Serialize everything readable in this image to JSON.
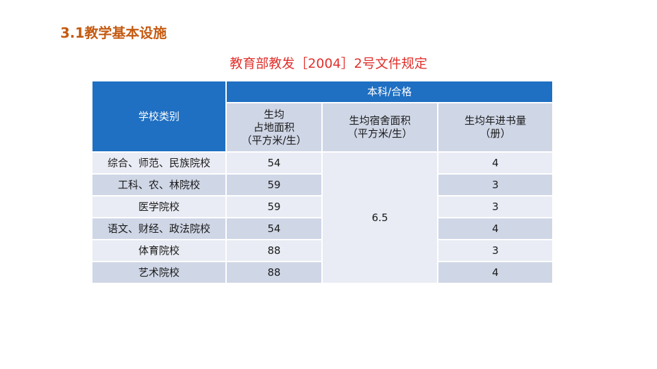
{
  "page_title": "3.1教学基本设施",
  "subtitle": "教育部教发［2004］2号文件规定",
  "table": {
    "group_header": "本科/合格",
    "col_category": "学校类别",
    "col_land_area": [
      "生均",
      "占地面积",
      "（平方米/生）"
    ],
    "col_dorm_area": [
      "生均宿舍面积",
      "（平方米/生）"
    ],
    "col_books": [
      "生均年进书量",
      "（册）"
    ],
    "dorm_value": "6.5",
    "rows": [
      {
        "category": "综合、师范、民族院校",
        "land": "54",
        "books": "4"
      },
      {
        "category": "工科、农、林院校",
        "land": "59",
        "books": "3"
      },
      {
        "category": "医学院校",
        "land": "59",
        "books": "3"
      },
      {
        "category": "语文、财经、政法院校",
        "land": "54",
        "books": "4"
      },
      {
        "category": "体育院校",
        "land": "88",
        "books": "3"
      },
      {
        "category": "艺术院校",
        "land": "88",
        "books": "4"
      }
    ]
  }
}
